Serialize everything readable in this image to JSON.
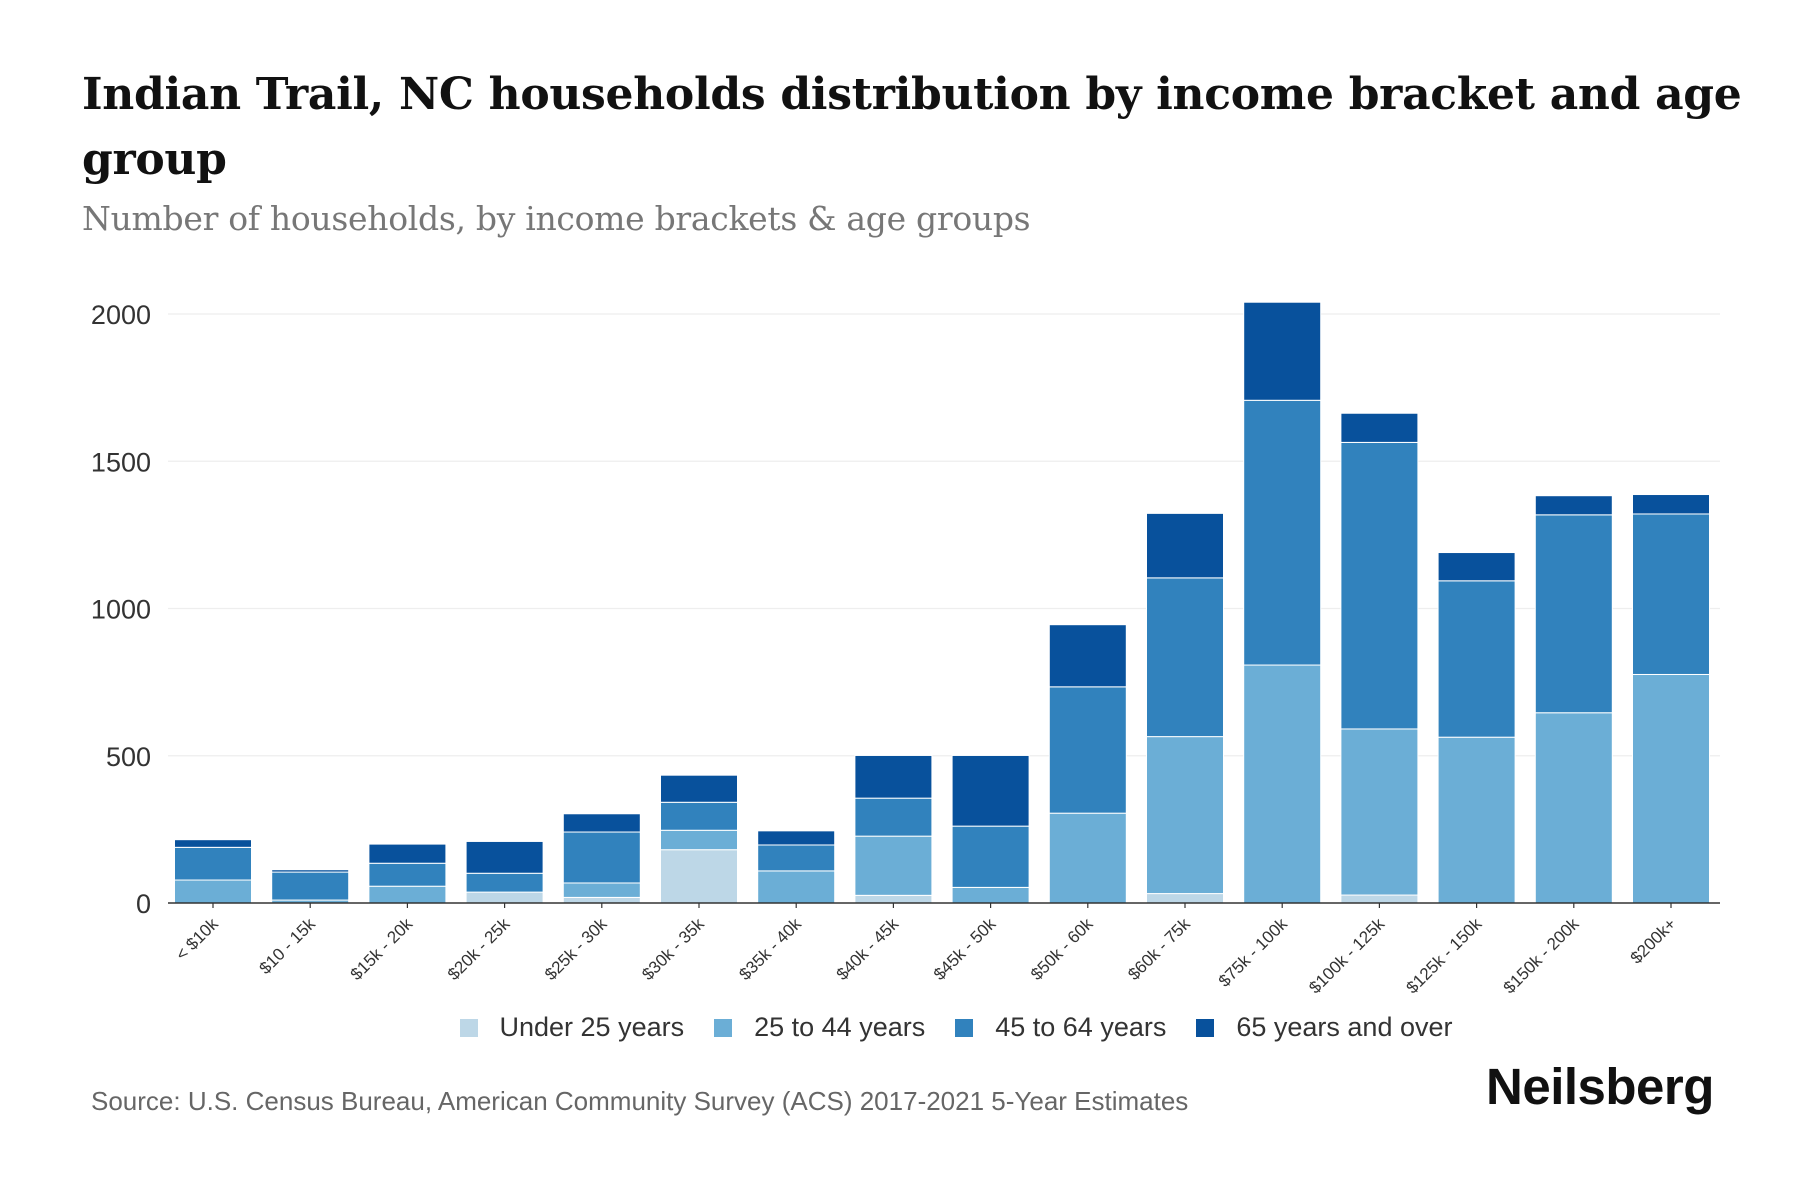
{
  "header": {
    "title": "Indian Trail, NC households distribution by income bracket and age group",
    "subtitle": "Number of households, by income brackets & age groups"
  },
  "footer": {
    "source": "Source: U.S. Census Bureau, American Community Survey (ACS) 2017-2021 5-Year Estimates",
    "brand": "Neilsberg"
  },
  "chart_data": {
    "type": "bar",
    "stacked": true,
    "title": "Indian Trail, NC households distribution by income bracket and age group",
    "subtitle": "Number of households, by income brackets & age groups",
    "xlabel": "",
    "ylabel": "",
    "ylim": [
      0,
      2000
    ],
    "yticks": [
      0,
      500,
      1000,
      1500,
      2000
    ],
    "grid": true,
    "legend_position": "bottom",
    "categories": [
      "< $10k",
      "$10 - 15k",
      "$15k - 20k",
      "$20k - 25k",
      "$25k - 30k",
      "$30k - 35k",
      "$35k - 40k",
      "$40k - 45k",
      "$45k - 50k",
      "$50k - 60k",
      "$60k - 75k",
      "$75k - 100k",
      "$100k - 125k",
      "$125k - 150k",
      "$150k - 200k",
      "$200k+"
    ],
    "series": [
      {
        "name": "Under 25 years",
        "color": "#bdd7e7",
        "values": [
          0,
          0,
          0,
          37,
          19,
          181,
          0,
          26,
          0,
          0,
          32,
          0,
          27,
          0,
          0,
          0
        ]
      },
      {
        "name": "25 to 44 years",
        "color": "#6baed6",
        "values": [
          78,
          10,
          57,
          0,
          49,
          66,
          109,
          201,
          53,
          305,
          533,
          808,
          564,
          563,
          646,
          776
        ]
      },
      {
        "name": "45 to 64 years",
        "color": "#3182bd",
        "values": [
          111,
          95,
          78,
          64,
          173,
          95,
          88,
          129,
          208,
          429,
          539,
          899,
          973,
          531,
          672,
          545
        ]
      },
      {
        "name": "65 years and over",
        "color": "#08519c",
        "values": [
          26,
          8,
          65,
          108,
          62,
          92,
          48,
          145,
          240,
          211,
          219,
          333,
          99,
          96,
          65,
          66
        ]
      }
    ]
  }
}
